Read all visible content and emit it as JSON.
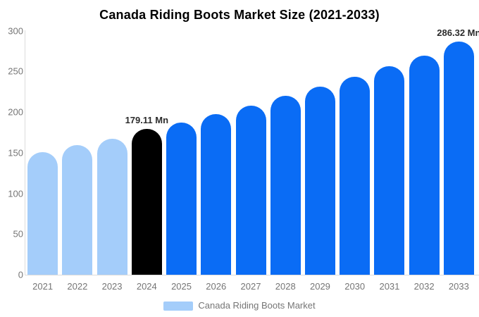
{
  "chart_data": {
    "type": "bar",
    "title": "Canada Riding Boots Market Size (2021-2033)",
    "categories": [
      "2021",
      "2022",
      "2023",
      "2024",
      "2025",
      "2026",
      "2027",
      "2028",
      "2029",
      "2030",
      "2031",
      "2032",
      "2033"
    ],
    "values": [
      151,
      159,
      167,
      179.11,
      187,
      197,
      208,
      220,
      231,
      243,
      256,
      269,
      286.32
    ],
    "unit": "Mn",
    "bar_color_keys": [
      "light",
      "light",
      "light",
      "black",
      "blue",
      "blue",
      "blue",
      "blue",
      "blue",
      "blue",
      "blue",
      "blue",
      "blue"
    ],
    "yticks": [
      0,
      50,
      100,
      150,
      200,
      250,
      300
    ],
    "ylim": [
      0,
      300
    ],
    "grid": false,
    "xlabel": "",
    "ylabel": "",
    "annotations": [
      {
        "category": "2024",
        "text": "179.11 Mn"
      },
      {
        "category": "2033",
        "text": "286.32 Mn"
      }
    ],
    "legend": {
      "position": "bottom",
      "label": "Canada Riding Boots Market"
    }
  },
  "colors": {
    "light_blue_bar": "#A4CDFA",
    "blue_bar": "#0A6CF5",
    "black_bar": "#000000",
    "title_text": "#000000",
    "axis_line": "#DCDCDC",
    "tick_text": "#757575",
    "annotation_text": "#2B2B2B",
    "legend_text": "#757575",
    "background": "#FFFFFF"
  }
}
